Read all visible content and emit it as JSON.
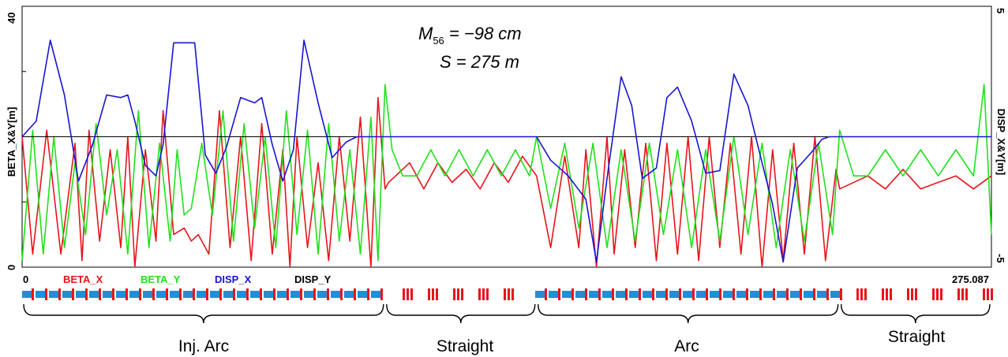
{
  "chart_data": {
    "type": "line",
    "ylabel_left": "BETA_X&Y[m]",
    "ylabel_right": "DISP_X&Y[m]",
    "ylim_left": [
      0,
      40
    ],
    "ylim_right": [
      -5,
      5
    ],
    "xlim": [
      0,
      275.087
    ],
    "x_start_label": "0",
    "x_end_label": "275.087",
    "y_ticks_left": [
      "0",
      "40"
    ],
    "y_ticks_right": [
      "-5",
      "5"
    ],
    "annotation": {
      "m_symbol": "M",
      "m_sub": "56",
      "m_value": " = −98  cm",
      "s_label": "S = 275  m"
    },
    "legend": [
      {
        "name": "BETA_X",
        "color": "#e8141a"
      },
      {
        "name": "BETA_Y",
        "color": "#1fe21a"
      },
      {
        "name": "DISP_X",
        "color": "#1a14d2"
      },
      {
        "name": "DISP_Y",
        "color": "#000000"
      }
    ],
    "regions": [
      {
        "label": "Inj. Arc",
        "x_start": 0,
        "x_end": 103
      },
      {
        "label": "Straight",
        "x_start": 103,
        "x_end": 146
      },
      {
        "label": "Arc",
        "x_start": 146,
        "x_end": 232
      },
      {
        "label": "Straight",
        "x_start": 232,
        "x_end": 275.087
      }
    ],
    "series": [
      {
        "name": "DISP_X",
        "axis": "right",
        "x": [
          0,
          4,
          8,
          12,
          16,
          20,
          24,
          28,
          30,
          32,
          35,
          38,
          40,
          43,
          46,
          49,
          52,
          55,
          58,
          62,
          66,
          68,
          71,
          74,
          77,
          80,
          84,
          88,
          92,
          95,
          99,
          103,
          110,
          120,
          130,
          140,
          146,
          150,
          155,
          160,
          163,
          166,
          170,
          173,
          176,
          180,
          183,
          186,
          190,
          194,
          198,
          202,
          206,
          210,
          213,
          216,
          220,
          224,
          227,
          229,
          232,
          240,
          250,
          260,
          270,
          275.087
        ],
        "y": [
          0.0,
          0.6,
          3.7,
          1.6,
          -1.7,
          -0.3,
          1.6,
          1.5,
          1.6,
          0.6,
          -1.1,
          -1.5,
          -0.3,
          3.6,
          3.6,
          3.6,
          -0.7,
          -1.4,
          -0.4,
          1.5,
          1.3,
          1.5,
          -0.3,
          -1.7,
          -0.5,
          3.7,
          1.3,
          -0.8,
          -0.2,
          0.0,
          0.0,
          0.0,
          0.0,
          0.0,
          0.0,
          0.0,
          0.0,
          -0.9,
          -1.5,
          -2.4,
          -4.8,
          -1.6,
          2.3,
          1.2,
          -1.6,
          -1.2,
          1.5,
          1.9,
          0.6,
          -1.4,
          -1.3,
          2.4,
          1.2,
          -1.0,
          -2.6,
          -4.8,
          -1.2,
          -0.6,
          -0.1,
          0.0,
          0.0,
          0.0,
          0.0,
          0.0,
          0.0,
          0.0
        ]
      },
      {
        "name": "DISP_Y",
        "axis": "right",
        "x": [
          0,
          275.087
        ],
        "y": [
          0,
          0
        ]
      },
      {
        "name": "BETA_X",
        "axis": "left",
        "x": [
          0,
          3,
          7,
          11,
          15,
          17,
          19,
          22,
          25,
          28,
          30,
          32,
          35,
          38,
          40,
          43,
          46,
          48,
          50,
          53,
          56,
          59,
          62,
          65,
          68,
          71,
          74,
          76,
          78,
          81,
          84,
          87,
          90,
          93,
          96,
          99,
          101,
          103,
          104,
          110,
          114,
          118,
          122,
          126,
          130,
          134,
          138,
          142,
          146,
          150,
          154,
          158,
          160,
          163,
          166,
          168,
          171,
          174,
          177,
          180,
          183,
          186,
          189,
          192,
          195,
          198,
          201,
          204,
          207,
          210,
          213,
          216,
          219,
          222,
          225,
          228,
          231,
          232,
          240,
          245,
          250,
          255,
          260,
          265,
          270,
          275.087
        ],
        "y": [
          20,
          2,
          21,
          2,
          19,
          1,
          21,
          4,
          18,
          3,
          20,
          0,
          18,
          4,
          24,
          5,
          6,
          4,
          5,
          2,
          24,
          3,
          20,
          1,
          22,
          2,
          18,
          0,
          20,
          3,
          16,
          1,
          20,
          4,
          23,
          0,
          26,
          12,
          13,
          16,
          12,
          16,
          13,
          15,
          12,
          16,
          13,
          17,
          14,
          3,
          17,
          3,
          18,
          0,
          20,
          2,
          18,
          3,
          19,
          1,
          19,
          2,
          20,
          1,
          20,
          3,
          19,
          2,
          20,
          0,
          18,
          1,
          19,
          2,
          20,
          1,
          15,
          12,
          14,
          12,
          15,
          12,
          13,
          14,
          12,
          14
        ]
      },
      {
        "name": "BETA_Y",
        "axis": "left",
        "x": [
          0,
          3,
          6,
          9,
          12,
          15,
          18,
          21,
          24,
          27,
          30,
          33,
          36,
          39,
          42,
          44,
          46,
          48,
          51,
          54,
          57,
          60,
          63,
          66,
          69,
          72,
          75,
          78,
          81,
          84,
          87,
          90,
          93,
          96,
          99,
          101,
          103,
          105,
          108,
          112,
          116,
          120,
          124,
          128,
          132,
          136,
          140,
          144,
          146,
          150,
          154,
          158,
          162,
          166,
          170,
          174,
          178,
          182,
          186,
          190,
          194,
          198,
          202,
          206,
          210,
          214,
          218,
          222,
          226,
          230,
          232,
          236,
          240,
          245,
          250,
          255,
          260,
          265,
          270,
          273,
          275.087
        ],
        "y": [
          1,
          21,
          2,
          20,
          3,
          16,
          5,
          22,
          8,
          18,
          2,
          24,
          3,
          19,
          4,
          18,
          8,
          9,
          19,
          8,
          24,
          4,
          22,
          6,
          20,
          3,
          24,
          5,
          21,
          2,
          22,
          4,
          18,
          2,
          23,
          1,
          28,
          18,
          14,
          14,
          18,
          14,
          18,
          14,
          18,
          14,
          18,
          14,
          20,
          9,
          19,
          6,
          19,
          3,
          18,
          4,
          19,
          5,
          18,
          3,
          18,
          4,
          20,
          5,
          19,
          3,
          18,
          4,
          19,
          5,
          21,
          14,
          14,
          18,
          14,
          18,
          14,
          18,
          14,
          28,
          5
        ]
      }
    ]
  }
}
